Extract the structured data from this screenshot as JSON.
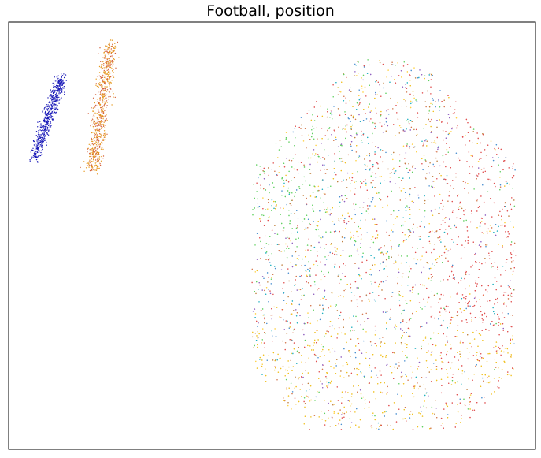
{
  "chart_data": {
    "type": "scatter",
    "title": "Football, position",
    "xlabel": "",
    "ylabel": "",
    "axes_ticks_visible": false,
    "grid": false,
    "legend": "none",
    "clusters": [
      {
        "name": "",
        "color_mix": [
          "#1a1ab8"
        ],
        "center": [
          0.12,
          0.78
        ],
        "extent": "narrow diagonal strip, upper-left"
      },
      {
        "name": "",
        "color_mix": [
          "#e69a20",
          "#d4603c"
        ],
        "center": [
          0.25,
          0.82
        ],
        "extent": "narrow vertical strip, upper-left"
      },
      {
        "name": "",
        "color_mix": [
          "#e05050",
          "#4a8fd0",
          "#60d060",
          "#f0c020",
          "#c08040",
          "#20b0c0"
        ],
        "center": [
          0.72,
          0.45
        ],
        "extent": "large mixed cloud, right half"
      }
    ]
  }
}
